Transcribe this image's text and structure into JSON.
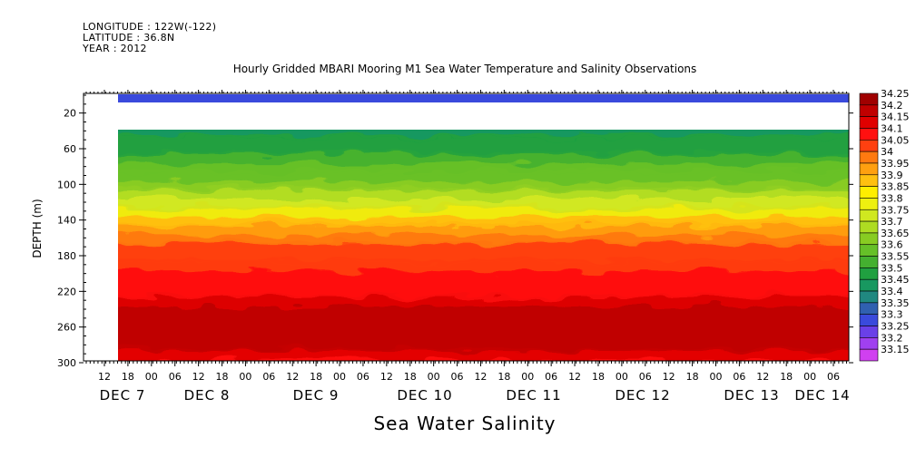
{
  "header": {
    "longitude": "LONGITUDE : 122W(-122)",
    "latitude": "LATITUDE : 36.8N",
    "year": "YEAR : 2012"
  },
  "chart_data": {
    "type": "heatmap",
    "title": "Hourly Gridded MBARI Mooring M1 Sea Water Temperature and Salinity Observations",
    "xlabel": "Sea Water Salinity",
    "ylabel": "DEPTH (m)",
    "y_ticks": [
      20,
      60,
      100,
      140,
      180,
      220,
      260,
      300
    ],
    "ylim": [
      300,
      0
    ],
    "x_hour_ticks": [
      "12",
      "18",
      "00",
      "06",
      "12",
      "18",
      "00",
      "06",
      "12",
      "18",
      "00",
      "06",
      "12",
      "18",
      "00",
      "06",
      "12",
      "18",
      "00",
      "06",
      "12",
      "18",
      "00",
      "06",
      "12",
      "18",
      "00",
      "06",
      "12",
      "18",
      "00",
      "06"
    ],
    "x_day_labels": [
      "DEC  7",
      "DEC  8",
      "DEC  9",
      "DEC 10",
      "DEC 11",
      "DEC 12",
      "DEC 13",
      "DEC 14"
    ],
    "colorbar_levels": [
      "34.25",
      "34.2",
      "34.15",
      "34.1",
      "34.05",
      "34",
      "33.95",
      "33.9",
      "33.85",
      "33.8",
      "33.75",
      "33.7",
      "33.65",
      "33.6",
      "33.55",
      "33.5",
      "33.45",
      "33.4",
      "33.35",
      "33.3",
      "33.25",
      "33.2",
      "33.15"
    ],
    "colorbar_colors": [
      "#a00000",
      "#c00000",
      "#e00000",
      "#ff1010",
      "#ff4010",
      "#ff7a10",
      "#ffa010",
      "#ffc010",
      "#ffee00",
      "#eef010",
      "#d0e820",
      "#aedc22",
      "#88cc22",
      "#66c028",
      "#44b030",
      "#20a040",
      "#189860",
      "#208880",
      "#3060b0",
      "#3a4adc",
      "#6a40e8",
      "#a040f0",
      "#d040f0"
    ],
    "depth_profile": [
      {
        "depth": 10,
        "salinity": 33.35
      },
      {
        "depth": 40,
        "salinity": 33.47
      },
      {
        "depth": 60,
        "salinity": 33.52
      },
      {
        "depth": 80,
        "salinity": 33.58
      },
      {
        "depth": 100,
        "salinity": 33.65
      },
      {
        "depth": 120,
        "salinity": 33.75
      },
      {
        "depth": 140,
        "salinity": 33.88
      },
      {
        "depth": 160,
        "salinity": 34.0
      },
      {
        "depth": 180,
        "salinity": 34.05
      },
      {
        "depth": 200,
        "salinity": 34.08
      },
      {
        "depth": 220,
        "salinity": 34.12
      },
      {
        "depth": 240,
        "salinity": 34.18
      },
      {
        "depth": 260,
        "salinity": 34.22
      },
      {
        "depth": 280,
        "salinity": 34.18
      },
      {
        "depth": 300,
        "salinity": 34.12
      }
    ],
    "grid": false
  }
}
